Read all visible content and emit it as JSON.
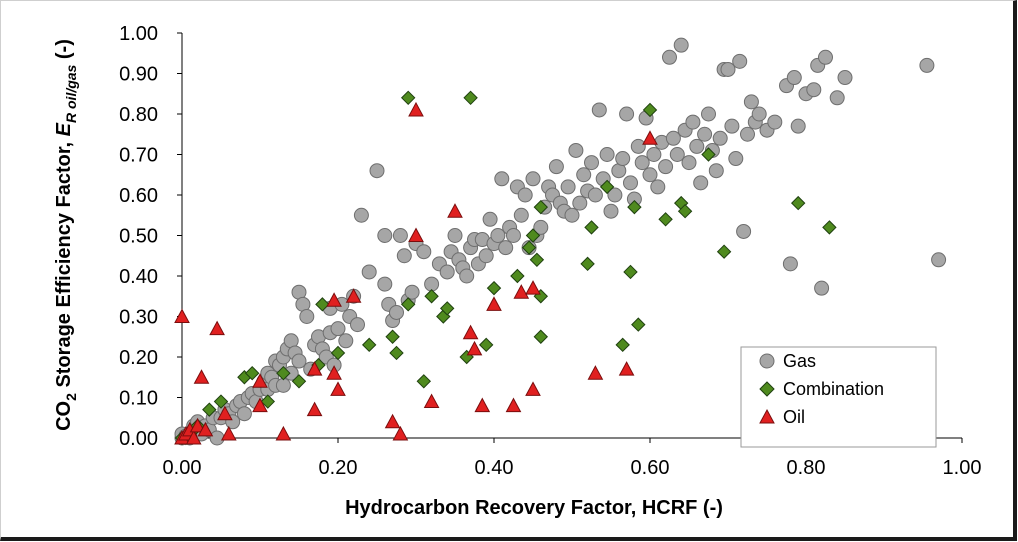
{
  "chart_data": {
    "type": "scatter",
    "xlabel": "Hydrocarbon Recovery Factor, HCRF (-)",
    "ylabel": {
      "prefix": "CO",
      "sub2": "2",
      "middle": " Storage Efficiency Factor, ",
      "E": "E",
      "R": "R",
      "subscript": " oil/gas",
      "suffix": " (-)"
    },
    "xlim": [
      0,
      1
    ],
    "ylim": [
      0,
      1
    ],
    "x_ticks": [
      "0.00",
      "0.20",
      "0.40",
      "0.60",
      "0.80",
      "1.00"
    ],
    "y_ticks": [
      "0.00",
      "0.10",
      "0.20",
      "0.30",
      "0.40",
      "0.50",
      "0.60",
      "0.70",
      "0.80",
      "0.90",
      "1.00"
    ],
    "grid": false,
    "legend_position": "bottom-right",
    "series": [
      {
        "name": "Gas",
        "marker": "circle",
        "color": "#a6a6a6",
        "edge": "#6e6e6e",
        "points": [
          [
            0.0,
            0.0
          ],
          [
            0.0,
            0.01
          ],
          [
            0.005,
            0.005
          ],
          [
            0.01,
            0.01
          ],
          [
            0.01,
            0.0
          ],
          [
            0.015,
            0.03
          ],
          [
            0.02,
            0.02
          ],
          [
            0.02,
            0.04
          ],
          [
            0.025,
            0.01
          ],
          [
            0.03,
            0.03
          ],
          [
            0.035,
            0.02
          ],
          [
            0.04,
            0.05
          ],
          [
            0.045,
            0.0
          ],
          [
            0.05,
            0.05
          ],
          [
            0.055,
            0.07
          ],
          [
            0.06,
            0.06
          ],
          [
            0.065,
            0.04
          ],
          [
            0.07,
            0.08
          ],
          [
            0.075,
            0.09
          ],
          [
            0.08,
            0.06
          ],
          [
            0.085,
            0.1
          ],
          [
            0.09,
            0.11
          ],
          [
            0.095,
            0.09
          ],
          [
            0.1,
            0.12
          ],
          [
            0.105,
            0.14
          ],
          [
            0.11,
            0.12
          ],
          [
            0.11,
            0.16
          ],
          [
            0.115,
            0.15
          ],
          [
            0.12,
            0.13
          ],
          [
            0.12,
            0.19
          ],
          [
            0.125,
            0.18
          ],
          [
            0.13,
            0.2
          ],
          [
            0.13,
            0.13
          ],
          [
            0.135,
            0.22
          ],
          [
            0.14,
            0.24
          ],
          [
            0.14,
            0.16
          ],
          [
            0.145,
            0.21
          ],
          [
            0.15,
            0.19
          ],
          [
            0.15,
            0.36
          ],
          [
            0.155,
            0.33
          ],
          [
            0.16,
            0.3
          ],
          [
            0.165,
            0.17
          ],
          [
            0.17,
            0.23
          ],
          [
            0.175,
            0.25
          ],
          [
            0.18,
            0.22
          ],
          [
            0.185,
            0.2
          ],
          [
            0.19,
            0.26
          ],
          [
            0.19,
            0.32
          ],
          [
            0.195,
            0.18
          ],
          [
            0.2,
            0.27
          ],
          [
            0.205,
            0.33
          ],
          [
            0.21,
            0.24
          ],
          [
            0.215,
            0.3
          ],
          [
            0.22,
            0.35
          ],
          [
            0.225,
            0.28
          ],
          [
            0.23,
            0.55
          ],
          [
            0.24,
            0.41
          ],
          [
            0.25,
            0.66
          ],
          [
            0.26,
            0.5
          ],
          [
            0.26,
            0.38
          ],
          [
            0.265,
            0.33
          ],
          [
            0.27,
            0.29
          ],
          [
            0.275,
            0.31
          ],
          [
            0.28,
            0.5
          ],
          [
            0.285,
            0.45
          ],
          [
            0.29,
            0.34
          ],
          [
            0.295,
            0.36
          ],
          [
            0.3,
            0.48
          ],
          [
            0.31,
            0.46
          ],
          [
            0.32,
            0.38
          ],
          [
            0.33,
            0.43
          ],
          [
            0.34,
            0.41
          ],
          [
            0.345,
            0.46
          ],
          [
            0.35,
            0.5
          ],
          [
            0.355,
            0.44
          ],
          [
            0.36,
            0.42
          ],
          [
            0.365,
            0.4
          ],
          [
            0.37,
            0.47
          ],
          [
            0.375,
            0.49
          ],
          [
            0.38,
            0.43
          ],
          [
            0.385,
            0.49
          ],
          [
            0.39,
            0.45
          ],
          [
            0.395,
            0.54
          ],
          [
            0.4,
            0.48
          ],
          [
            0.405,
            0.5
          ],
          [
            0.41,
            0.64
          ],
          [
            0.415,
            0.47
          ],
          [
            0.42,
            0.52
          ],
          [
            0.425,
            0.5
          ],
          [
            0.43,
            0.62
          ],
          [
            0.435,
            0.55
          ],
          [
            0.44,
            0.6
          ],
          [
            0.445,
            0.47
          ],
          [
            0.45,
            0.64
          ],
          [
            0.455,
            0.5
          ],
          [
            0.46,
            0.52
          ],
          [
            0.465,
            0.57
          ],
          [
            0.47,
            0.62
          ],
          [
            0.475,
            0.6
          ],
          [
            0.48,
            0.67
          ],
          [
            0.485,
            0.58
          ],
          [
            0.49,
            0.56
          ],
          [
            0.495,
            0.62
          ],
          [
            0.5,
            0.55
          ],
          [
            0.505,
            0.71
          ],
          [
            0.51,
            0.58
          ],
          [
            0.515,
            0.65
          ],
          [
            0.52,
            0.61
          ],
          [
            0.525,
            0.68
          ],
          [
            0.53,
            0.6
          ],
          [
            0.535,
            0.81
          ],
          [
            0.54,
            0.64
          ],
          [
            0.545,
            0.7
          ],
          [
            0.55,
            0.56
          ],
          [
            0.555,
            0.6
          ],
          [
            0.56,
            0.66
          ],
          [
            0.565,
            0.69
          ],
          [
            0.57,
            0.8
          ],
          [
            0.575,
            0.63
          ],
          [
            0.58,
            0.59
          ],
          [
            0.585,
            0.72
          ],
          [
            0.59,
            0.68
          ],
          [
            0.595,
            0.79
          ],
          [
            0.6,
            0.65
          ],
          [
            0.605,
            0.7
          ],
          [
            0.61,
            0.62
          ],
          [
            0.615,
            0.73
          ],
          [
            0.62,
            0.67
          ],
          [
            0.625,
            0.94
          ],
          [
            0.63,
            0.74
          ],
          [
            0.635,
            0.7
          ],
          [
            0.64,
            0.97
          ],
          [
            0.645,
            0.76
          ],
          [
            0.65,
            0.68
          ],
          [
            0.655,
            0.78
          ],
          [
            0.66,
            0.72
          ],
          [
            0.665,
            0.63
          ],
          [
            0.67,
            0.75
          ],
          [
            0.675,
            0.8
          ],
          [
            0.68,
            0.71
          ],
          [
            0.685,
            0.66
          ],
          [
            0.69,
            0.74
          ],
          [
            0.695,
            0.91
          ],
          [
            0.7,
            0.91
          ],
          [
            0.705,
            0.77
          ],
          [
            0.71,
            0.69
          ],
          [
            0.715,
            0.93
          ],
          [
            0.72,
            0.51
          ],
          [
            0.725,
            0.75
          ],
          [
            0.73,
            0.83
          ],
          [
            0.735,
            0.78
          ],
          [
            0.74,
            0.8
          ],
          [
            0.75,
            0.76
          ],
          [
            0.76,
            0.78
          ],
          [
            0.775,
            0.87
          ],
          [
            0.78,
            0.43
          ],
          [
            0.785,
            0.89
          ],
          [
            0.79,
            0.77
          ],
          [
            0.8,
            0.85
          ],
          [
            0.81,
            0.86
          ],
          [
            0.815,
            0.92
          ],
          [
            0.82,
            0.37
          ],
          [
            0.825,
            0.94
          ],
          [
            0.84,
            0.84
          ],
          [
            0.85,
            0.89
          ],
          [
            0.955,
            0.92
          ],
          [
            0.97,
            0.44
          ]
        ]
      },
      {
        "name": "Combination",
        "marker": "diamond",
        "color": "#4f8a1e",
        "edge": "#1f4010",
        "points": [
          [
            0.0,
            0.0
          ],
          [
            0.005,
            0.0
          ],
          [
            0.01,
            0.01
          ],
          [
            0.015,
            0.02
          ],
          [
            0.02,
            0.03
          ],
          [
            0.035,
            0.07
          ],
          [
            0.05,
            0.09
          ],
          [
            0.08,
            0.15
          ],
          [
            0.09,
            0.16
          ],
          [
            0.11,
            0.09
          ],
          [
            0.13,
            0.16
          ],
          [
            0.15,
            0.14
          ],
          [
            0.175,
            0.18
          ],
          [
            0.18,
            0.33
          ],
          [
            0.2,
            0.21
          ],
          [
            0.24,
            0.23
          ],
          [
            0.27,
            0.25
          ],
          [
            0.275,
            0.21
          ],
          [
            0.29,
            0.33
          ],
          [
            0.29,
            0.84
          ],
          [
            0.31,
            0.14
          ],
          [
            0.32,
            0.35
          ],
          [
            0.335,
            0.3
          ],
          [
            0.34,
            0.32
          ],
          [
            0.365,
            0.2
          ],
          [
            0.37,
            0.84
          ],
          [
            0.39,
            0.23
          ],
          [
            0.4,
            0.37
          ],
          [
            0.43,
            0.4
          ],
          [
            0.445,
            0.47
          ],
          [
            0.45,
            0.5
          ],
          [
            0.455,
            0.44
          ],
          [
            0.46,
            0.57
          ],
          [
            0.46,
            0.35
          ],
          [
            0.46,
            0.25
          ],
          [
            0.52,
            0.43
          ],
          [
            0.525,
            0.52
          ],
          [
            0.545,
            0.62
          ],
          [
            0.565,
            0.23
          ],
          [
            0.575,
            0.41
          ],
          [
            0.58,
            0.57
          ],
          [
            0.585,
            0.28
          ],
          [
            0.6,
            0.81
          ],
          [
            0.62,
            0.54
          ],
          [
            0.64,
            0.58
          ],
          [
            0.645,
            0.56
          ],
          [
            0.675,
            0.7
          ],
          [
            0.695,
            0.46
          ],
          [
            0.79,
            0.58
          ],
          [
            0.83,
            0.52
          ]
        ]
      },
      {
        "name": "Oil",
        "marker": "triangle",
        "color": "#e02020",
        "edge": "#7a0d0d",
        "points": [
          [
            0.0,
            0.3
          ],
          [
            0.0,
            0.0
          ],
          [
            0.005,
            0.01
          ],
          [
            0.01,
            0.02
          ],
          [
            0.015,
            0.0
          ],
          [
            0.02,
            0.03
          ],
          [
            0.025,
            0.15
          ],
          [
            0.03,
            0.02
          ],
          [
            0.045,
            0.27
          ],
          [
            0.055,
            0.06
          ],
          [
            0.06,
            0.01
          ],
          [
            0.1,
            0.14
          ],
          [
            0.1,
            0.08
          ],
          [
            0.13,
            0.01
          ],
          [
            0.17,
            0.17
          ],
          [
            0.17,
            0.07
          ],
          [
            0.195,
            0.34
          ],
          [
            0.195,
            0.16
          ],
          [
            0.2,
            0.12
          ],
          [
            0.22,
            0.35
          ],
          [
            0.27,
            0.04
          ],
          [
            0.28,
            0.01
          ],
          [
            0.3,
            0.5
          ],
          [
            0.3,
            0.81
          ],
          [
            0.32,
            0.09
          ],
          [
            0.35,
            0.56
          ],
          [
            0.37,
            0.26
          ],
          [
            0.375,
            0.22
          ],
          [
            0.385,
            0.08
          ],
          [
            0.4,
            0.33
          ],
          [
            0.425,
            0.08
          ],
          [
            0.435,
            0.36
          ],
          [
            0.45,
            0.37
          ],
          [
            0.45,
            0.12
          ],
          [
            0.53,
            0.16
          ],
          [
            0.57,
            0.17
          ],
          [
            0.6,
            0.74
          ]
        ]
      }
    ]
  }
}
